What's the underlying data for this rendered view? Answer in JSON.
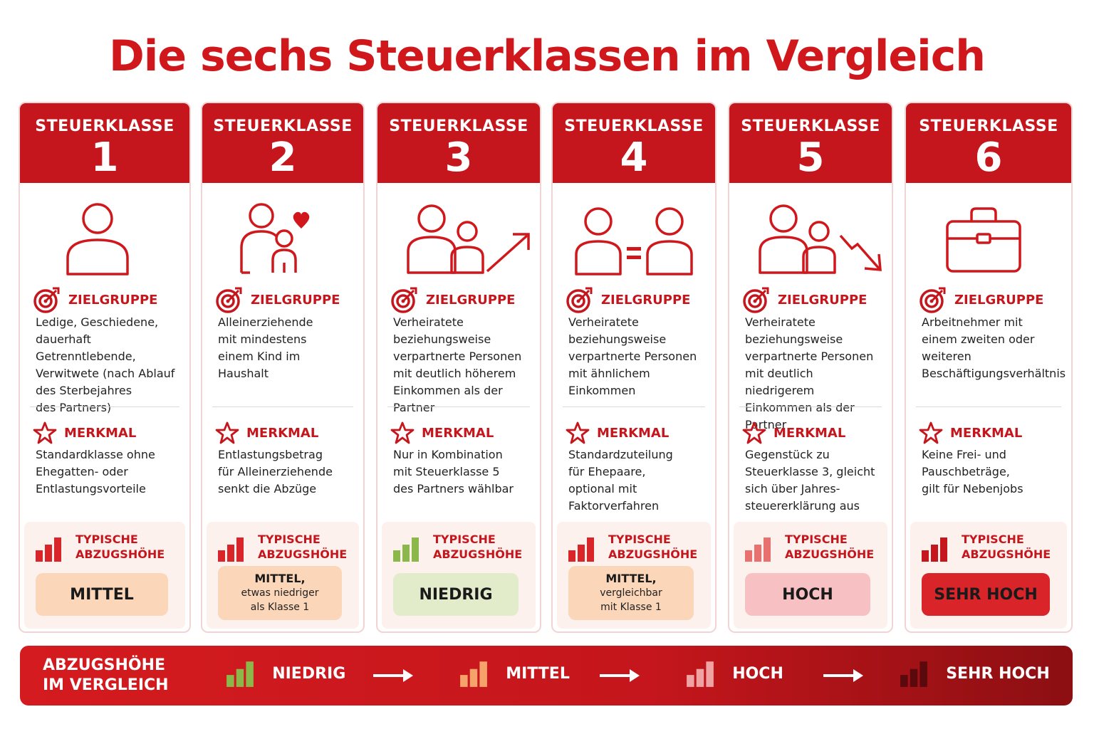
{
  "title": "Die sechs Steuerklassen im Vergleich",
  "section_labels": {
    "zielgruppe": "ZIELGRUPPE",
    "merkmal": "MERKMAL",
    "abzug": "TYPISCHE\nABZUGSHÖHE"
  },
  "classes": [
    {
      "label": "STEUERKLASSE",
      "number": "1",
      "icon": "person-icon",
      "zielgruppe": "Ledige, Geschiedene,\ndauerhaft Getrenntlebende,\nVerwitwete (nach Ablauf\ndes Sterbejahres\ndes Partners)",
      "merkmal": "Standardklasse ohne\nEhegatten- oder\nEntlastungsvorteile",
      "abzug_main": "MITTEL",
      "abzug_sub": "",
      "pill_color": "#fbd6b8",
      "pill_text_color": "#1a1a1a",
      "bar_color": "#d9242a"
    },
    {
      "label": "STEUERKLASSE",
      "number": "2",
      "icon": "parent-child-heart-icon",
      "zielgruppe": "Alleinerziehende\nmit mindestens\neinem Kind im\nHaushalt",
      "merkmal": "Entlastungsbetrag\nfür Alleinerziehende\nsenkt die Abzüge",
      "abzug_main": "MITTEL,",
      "abzug_sub": "etwas niedriger\nals Klasse 1",
      "pill_color": "#fbd6b8",
      "pill_text_color": "#1a1a1a",
      "bar_color": "#d9242a"
    },
    {
      "label": "STEUERKLASSE",
      "number": "3",
      "icon": "couple-arrow-up-icon",
      "zielgruppe": "Verheiratete\nbeziehungsweise\nverpartnerte Personen\nmit deutlich höherem\nEinkommen als der Partner",
      "merkmal": "Nur in Kombination\nmit Steuerklasse 5\ndes Partners wählbar",
      "abzug_main": "NIEDRIG",
      "abzug_sub": "",
      "pill_color": "#e2eccb",
      "pill_text_color": "#1a1a1a",
      "bar_color": "#8cb84a"
    },
    {
      "label": "STEUERKLASSE",
      "number": "4",
      "icon": "persons-equal-icon",
      "zielgruppe": "Verheiratete\nbeziehungsweise\nverpartnerte Personen\nmit ähnlichem\nEinkommen",
      "merkmal": "Standardzuteilung\nfür Ehepaare,\noptional mit\nFaktorverfahren",
      "abzug_main": "MITTEL,",
      "abzug_sub": "vergleichbar\nmit Klasse 1",
      "pill_color": "#fbd6b8",
      "pill_text_color": "#1a1a1a",
      "bar_color": "#d9242a"
    },
    {
      "label": "STEUERKLASSE",
      "number": "5",
      "icon": "couple-arrow-down-icon",
      "zielgruppe": "Verheiratete\nbeziehungsweise\nverpartnerte Personen\nmit deutlich niedrigerem\nEinkommen als der Partner",
      "merkmal": "Gegenstück zu\nSteuerklasse 3, gleicht\nsich über Jahres-\nsteuererklärung aus",
      "abzug_main": "HOCH",
      "abzug_sub": "",
      "pill_color": "#f7c1c3",
      "pill_text_color": "#1a1a1a",
      "bar_color": "#e8716f"
    },
    {
      "label": "STEUERKLASSE",
      "number": "6",
      "icon": "briefcase-icon",
      "zielgruppe": "Arbeitnehmer mit\neinem zweiten oder\nweiteren\nBeschäftigungsverhältnis",
      "merkmal": "Keine Frei- und\nPauschbeträge,\ngilt für Nebenjobs",
      "abzug_main": "SEHR HOCH",
      "abzug_sub": "",
      "pill_color": "#d9242a",
      "pill_text_color": "#1a1a1a",
      "bar_color": "#c4161c"
    }
  ],
  "footer": {
    "title": "ABZUGSHÖHE\nIM VERGLEICH",
    "steps": [
      {
        "label": "NIEDRIG",
        "bar_color": "#8cb84a"
      },
      {
        "label": "MITTEL",
        "bar_color": "#f5a26b"
      },
      {
        "label": "HOCH",
        "bar_color": "#f0a3a3"
      },
      {
        "label": "SEHR HOCH",
        "bar_color": "#5a0a0c"
      }
    ]
  },
  "colors": {
    "accent": "#c4161c",
    "background": "#ffffff"
  }
}
